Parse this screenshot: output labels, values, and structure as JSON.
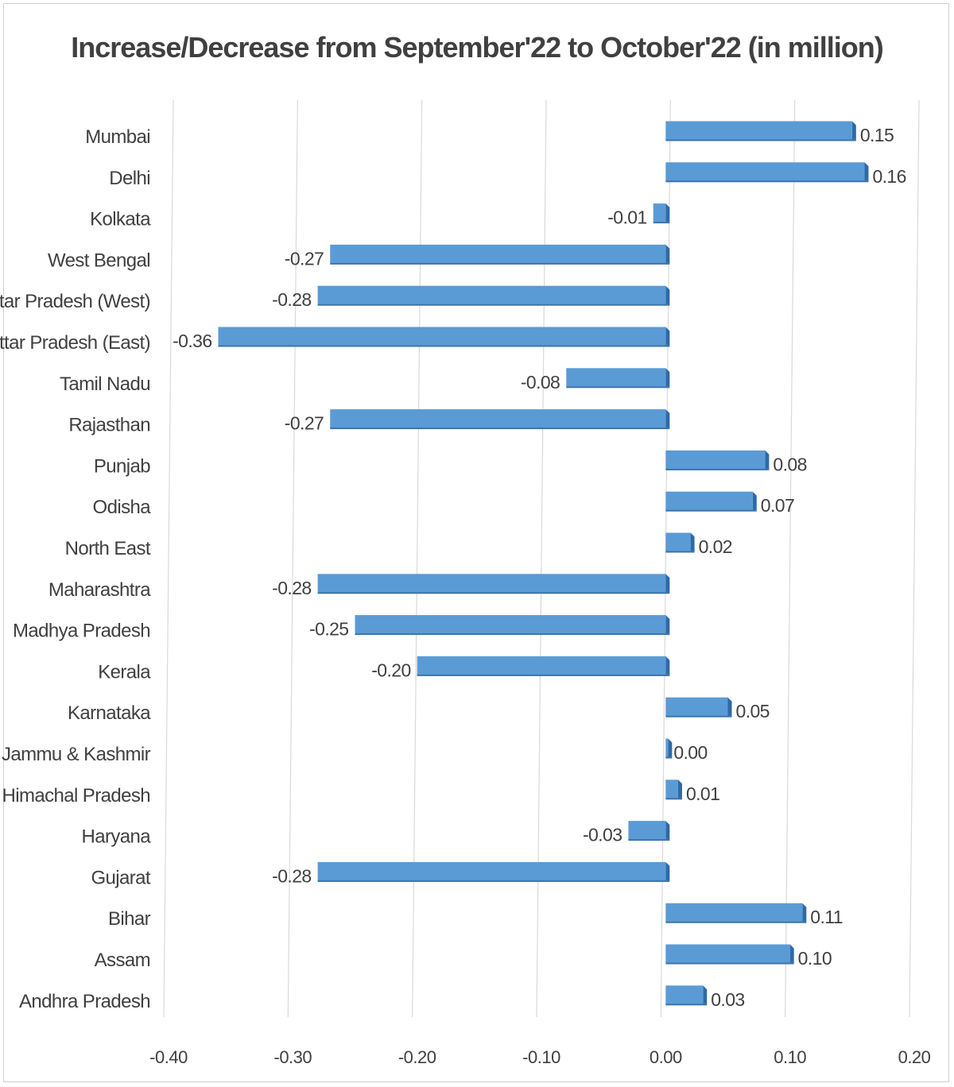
{
  "chart_data": {
    "type": "bar",
    "orientation": "horizontal",
    "title": "Increase/Decrease from September'22 to October'22 (in million)",
    "xlabel": "",
    "ylabel": "",
    "xlim": [
      -0.4,
      0.2
    ],
    "x_ticks": [
      "-0.40",
      "-0.30",
      "-0.20",
      "-0.10",
      "0.00",
      "0.10",
      "0.20"
    ],
    "grid": true,
    "legend": "none",
    "bar_color": "#5b9bd5",
    "categories": [
      "Mumbai",
      "Delhi",
      "Kolkata",
      "West Bengal",
      "Uttar Pradesh (West)",
      "Uttar Pradesh (East)",
      "Tamil Nadu",
      "Rajasthan",
      "Punjab",
      "Odisha",
      "North East",
      "Maharashtra",
      "Madhya Pradesh",
      "Kerala",
      "Karnataka",
      "Jammu & Kashmir",
      "Himachal Pradesh",
      "Haryana",
      "Gujarat",
      "Bihar",
      "Assam",
      "Andhra Pradesh"
    ],
    "values": [
      0.15,
      0.16,
      -0.01,
      -0.27,
      -0.28,
      -0.36,
      -0.08,
      -0.27,
      0.08,
      0.07,
      0.02,
      -0.28,
      -0.25,
      -0.2,
      0.05,
      0.0,
      0.01,
      -0.03,
      -0.28,
      0.11,
      0.1,
      0.03
    ],
    "data_labels": [
      "0.15",
      "0.16",
      "-0.01",
      "-0.27",
      "-0.28",
      "-0.36",
      "-0.08",
      "-0.27",
      "0.08",
      "0.07",
      "0.02",
      "-0.28",
      "-0.25",
      "-0.20",
      "0.05",
      "0.00",
      "0.01",
      "-0.03",
      "-0.28",
      "0.11",
      "0.10",
      "0.03"
    ]
  }
}
